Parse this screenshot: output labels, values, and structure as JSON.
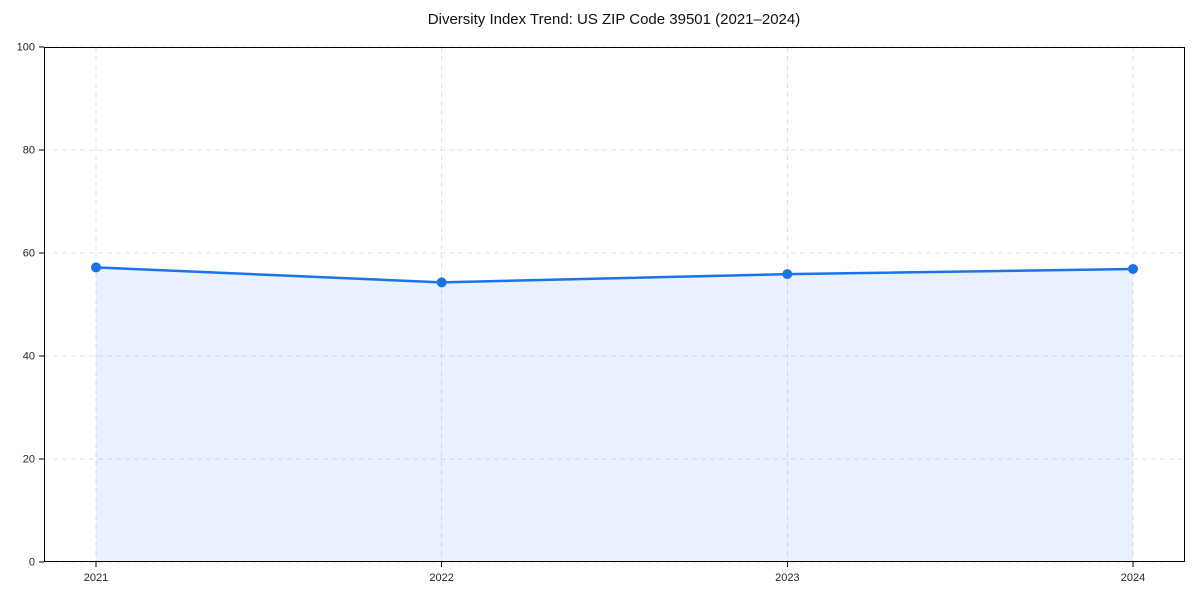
{
  "chart_data": {
    "type": "line",
    "title": "Diversity Index Trend: US ZIP Code 39501 (2021–2024)",
    "categories": [
      "2021",
      "2022",
      "2023",
      "2024"
    ],
    "series": [
      {
        "name": "Diversity Index",
        "values": [
          57.2,
          54.3,
          55.9,
          56.9
        ]
      }
    ],
    "xlabel": "",
    "ylabel": "",
    "ylim": [
      0,
      100
    ],
    "yticks": [
      0,
      20,
      40,
      60,
      80,
      100
    ],
    "grid": true,
    "grid_style": "dashed",
    "legend_position": "none",
    "colors": {
      "line": "#1a73e8",
      "marker": "#1a73e8",
      "area_fill": "#1a73e8",
      "grid": "#e0e0e0",
      "axis": "#000000",
      "tick_label": "#262626",
      "title": "#111111",
      "background": "#ffffff"
    },
    "area_fill_opacity": 0.1,
    "marker_shape": "circle",
    "marker_radius": 5,
    "line_width": 2.5
  }
}
